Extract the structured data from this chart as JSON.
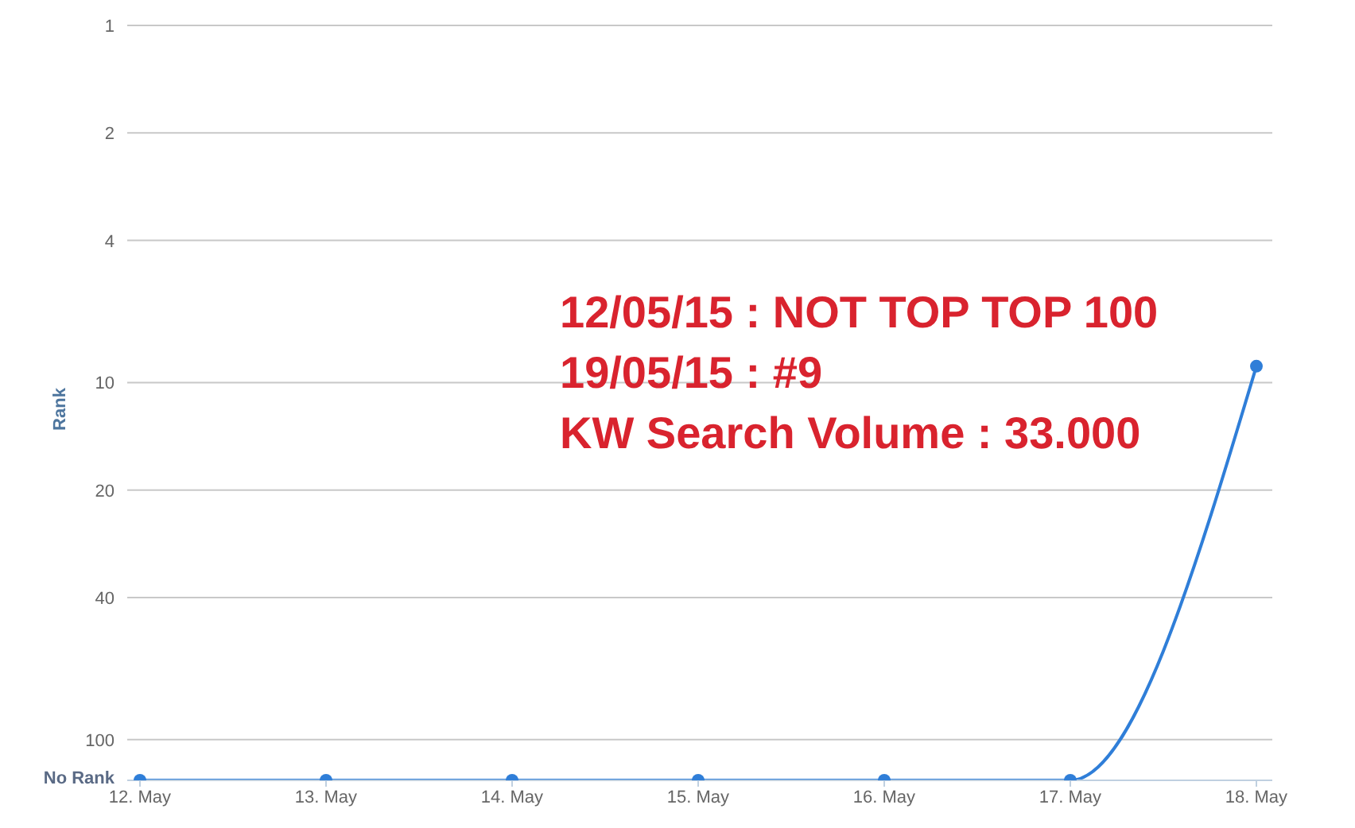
{
  "chart_data": {
    "type": "line",
    "ylabel": "Rank",
    "categories": [
      "12. May",
      "13. May",
      "14. May",
      "15. May",
      "16. May",
      "17. May",
      "18. May"
    ],
    "series": [
      {
        "color": "#2f7ed8",
        "values": [
          130,
          130,
          130,
          130,
          130,
          130,
          9
        ]
      }
    ],
    "ylim": [
      130,
      1
    ],
    "yticks": [
      1,
      2,
      4,
      10,
      20,
      40,
      100,
      {
        "value": 130,
        "label": "No Rank"
      }
    ],
    "log": true,
    "grid": "y",
    "marker": "circle",
    "line_style": "solid",
    "annotations": [
      "12/05/15 : NOT TOP TOP 100",
      "19/05/15 : #9",
      "KW Search Volume : 33.000"
    ]
  }
}
